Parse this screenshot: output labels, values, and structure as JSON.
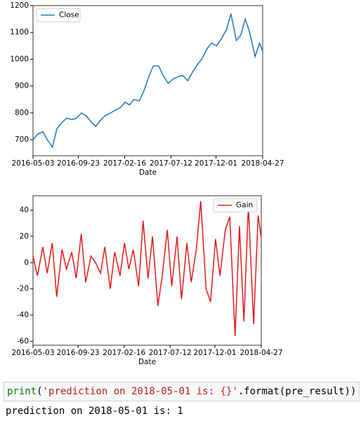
{
  "chart_data": [
    {
      "type": "line",
      "x_label": "Date",
      "x": [
        "2016-05-03",
        "2016-05-17",
        "2016-06-03",
        "2016-06-17",
        "2016-07-03",
        "2016-07-17",
        "2016-08-03",
        "2016-08-17",
        "2016-09-03",
        "2016-09-17",
        "2016-10-03",
        "2016-10-17",
        "2016-11-03",
        "2016-11-17",
        "2016-12-03",
        "2016-12-17",
        "2017-01-03",
        "2017-01-17",
        "2017-02-03",
        "2017-02-17",
        "2017-03-03",
        "2017-03-17",
        "2017-04-03",
        "2017-04-17",
        "2017-05-03",
        "2017-05-17",
        "2017-06-03",
        "2017-06-17",
        "2017-07-03",
        "2017-07-17",
        "2017-08-03",
        "2017-08-17",
        "2017-09-03",
        "2017-09-17",
        "2017-10-03",
        "2017-10-17",
        "2017-11-03",
        "2017-11-17",
        "2017-12-03",
        "2017-12-17",
        "2018-01-03",
        "2018-01-17",
        "2018-02-03",
        "2018-02-17",
        "2018-03-03",
        "2018-03-17",
        "2018-04-03",
        "2018-04-17",
        "2018-04-27"
      ],
      "series": [
        {
          "name": "Close",
          "color": "#1f77b4",
          "values": [
            700,
            720,
            730,
            700,
            672,
            740,
            765,
            780,
            775,
            780,
            800,
            790,
            765,
            750,
            775,
            790,
            800,
            810,
            820,
            840,
            830,
            850,
            845,
            880,
            935,
            975,
            975,
            940,
            910,
            925,
            935,
            940,
            920,
            950,
            980,
            1000,
            1040,
            1060,
            1050,
            1075,
            1110,
            1170,
            1070,
            1090,
            1150,
            1100,
            1010,
            1060,
            1030
          ]
        }
      ],
      "xlim": [
        "2016-05-03",
        "2018-04-27"
      ],
      "xticks": [
        "2016-05-03",
        "2016-09-23",
        "2017-02-16",
        "2017-07-12",
        "2017-12-01",
        "2018-04-27"
      ],
      "ylim": [
        640,
        1200
      ],
      "yticks": [
        700,
        800,
        900,
        1000,
        1100,
        1200
      ],
      "legend": "upper left"
    },
    {
      "type": "line",
      "x_label": "Date",
      "x": [
        "2016-05-03",
        "2016-05-17",
        "2016-06-03",
        "2016-06-17",
        "2016-07-03",
        "2016-07-17",
        "2016-08-03",
        "2016-08-17",
        "2016-09-03",
        "2016-09-17",
        "2016-10-03",
        "2016-10-17",
        "2016-11-03",
        "2016-11-17",
        "2016-12-03",
        "2016-12-17",
        "2017-01-03",
        "2017-01-17",
        "2017-02-03",
        "2017-02-17",
        "2017-03-03",
        "2017-03-17",
        "2017-04-03",
        "2017-04-17",
        "2017-05-03",
        "2017-05-17",
        "2017-06-03",
        "2017-06-17",
        "2017-07-03",
        "2017-07-17",
        "2017-08-03",
        "2017-08-17",
        "2017-09-03",
        "2017-09-17",
        "2017-10-03",
        "2017-10-17",
        "2017-11-03",
        "2017-11-17",
        "2017-12-03",
        "2017-12-17",
        "2018-01-03",
        "2018-01-17",
        "2018-02-03",
        "2018-02-17",
        "2018-03-03",
        "2018-03-17",
        "2018-04-03",
        "2018-04-17",
        "2018-04-27"
      ],
      "series": [
        {
          "name": "Gain",
          "color": "#e31a1c",
          "values": [
            5,
            -10,
            12,
            -8,
            15,
            -26,
            10,
            -5,
            8,
            -12,
            22,
            -15,
            5,
            0,
            -8,
            12,
            -20,
            8,
            -10,
            15,
            -5,
            10,
            -18,
            32,
            -12,
            20,
            -33,
            -10,
            25,
            -18,
            20,
            -28,
            15,
            -15,
            10,
            47,
            -20,
            -30,
            18,
            -10,
            25,
            35,
            -56,
            28,
            -45,
            44,
            -47,
            36,
            19
          ]
        }
      ],
      "xlim": [
        "2016-05-03",
        "2018-04-27"
      ],
      "xticks": [
        "2016-05-03",
        "2016-09-23",
        "2017-02-16",
        "2017-07-12",
        "2017-12-01",
        "2018-04-27"
      ],
      "ylim": [
        -63,
        51
      ],
      "yticks": [
        -60,
        -40,
        -20,
        0,
        20,
        40
      ],
      "legend": "upper right"
    }
  ],
  "code": [
    "print",
    "(",
    "'prediction on 2018-05-01 is: {}'",
    ".format(pre_result))"
  ],
  "output": "prediction on 2018-05-01 is: 1"
}
